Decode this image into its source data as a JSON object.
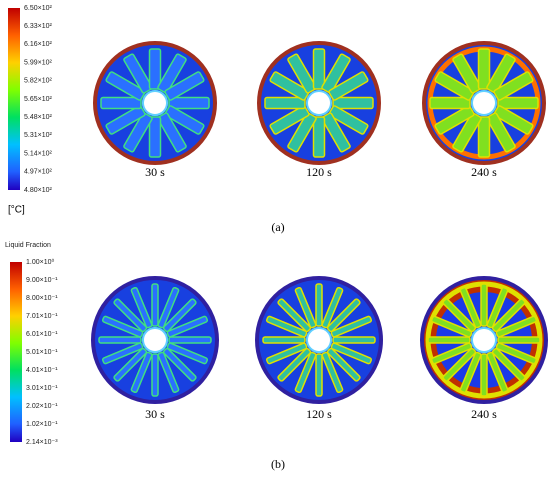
{
  "panel_a": {
    "colorbar": {
      "ticks": [
        "6.50×10²",
        "6.33×10²",
        "6.16×10²",
        "5.99×10²",
        "5.82×10²",
        "5.65×10²",
        "5.48×10²",
        "5.31×10²",
        "5.14×10²",
        "4.97×10²",
        "4.80×10²"
      ],
      "unit": "[°C]"
    },
    "times": [
      "30 s",
      "120 s",
      "240 s"
    ],
    "label": "(a)"
  },
  "panel_b": {
    "colorbar": {
      "title": "Liquid Fraction",
      "ticks": [
        "1.00×10⁰",
        "9.00×10⁻¹",
        "8.00×10⁻¹",
        "7.01×10⁻¹",
        "6.01×10⁻¹",
        "5.01×10⁻¹",
        "4.01×10⁻¹",
        "3.01×10⁻¹",
        "2.02×10⁻¹",
        "1.02×10⁻¹",
        "2.14×10⁻³"
      ]
    },
    "times": [
      "30 s",
      "120 s",
      "240 s"
    ],
    "label": "(b)"
  }
}
